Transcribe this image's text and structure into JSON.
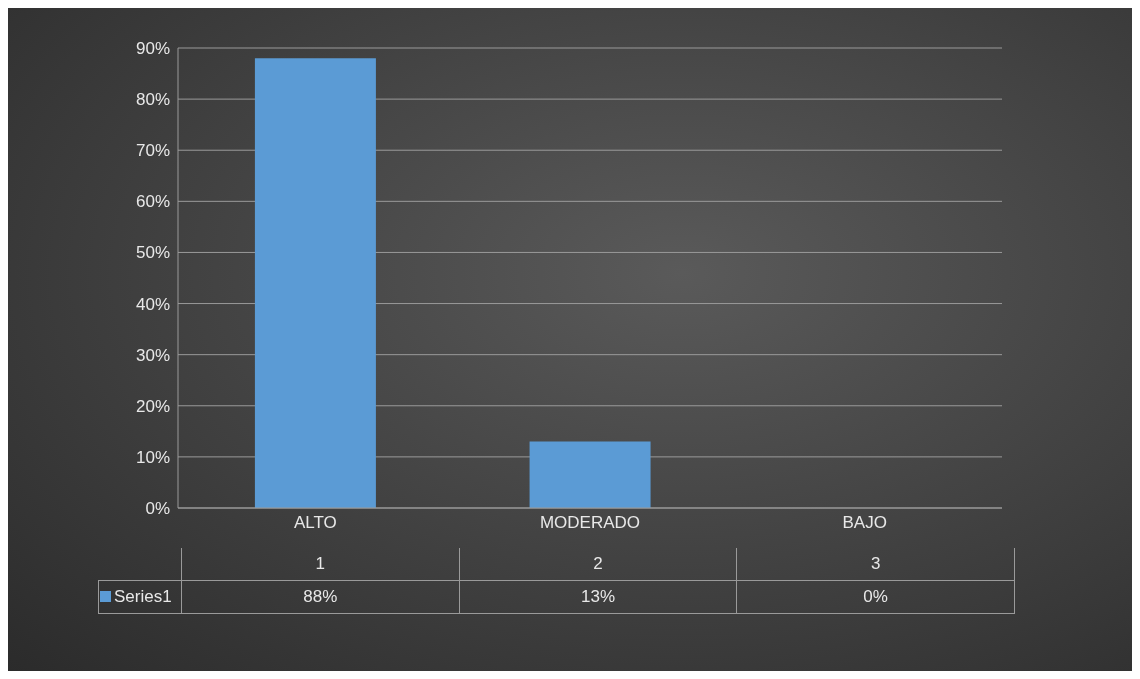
{
  "chart_data": {
    "type": "bar",
    "categories": [
      "ALTO",
      "MODERADO",
      "BAJO"
    ],
    "series": [
      {
        "name": "Series1",
        "color": "#5b9bd5",
        "values": [
          88,
          13,
          0
        ],
        "value_labels": [
          "88%",
          "13%",
          "0%"
        ]
      }
    ],
    "annotations": [
      "1",
      "2",
      "3"
    ],
    "ylim": [
      0,
      90
    ],
    "yticks": [
      {
        "value": 0,
        "label": "0%"
      },
      {
        "value": 10,
        "label": "10%"
      },
      {
        "value": 20,
        "label": "20%"
      },
      {
        "value": 30,
        "label": "30%"
      },
      {
        "value": 40,
        "label": "40%"
      },
      {
        "value": 50,
        "label": "50%"
      },
      {
        "value": 60,
        "label": "60%"
      },
      {
        "value": 70,
        "label": "70%"
      },
      {
        "value": 80,
        "label": "80%"
      },
      {
        "value": 90,
        "label": "90%"
      }
    ],
    "grid": "y",
    "legend": "bottom"
  }
}
